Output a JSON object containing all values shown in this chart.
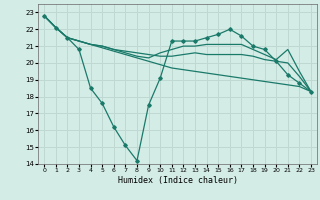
{
  "xlabel": "Humidex (Indice chaleur)",
  "background_color": "#d4ece6",
  "grid_color": "#c0d8d2",
  "line_color": "#1a7a6a",
  "xlim": [
    -0.5,
    23.5
  ],
  "ylim": [
    14,
    23.5
  ],
  "yticks": [
    14,
    15,
    16,
    17,
    18,
    19,
    20,
    21,
    22,
    23
  ],
  "xticks": [
    0,
    1,
    2,
    3,
    4,
    5,
    6,
    7,
    8,
    9,
    10,
    11,
    12,
    13,
    14,
    15,
    16,
    17,
    18,
    19,
    20,
    21,
    22,
    23
  ],
  "series": [
    {
      "x": [
        0,
        1,
        2,
        3,
        4,
        5,
        6,
        7,
        8,
        9,
        10,
        11,
        12,
        13,
        14,
        15,
        16,
        17,
        18,
        19,
        20,
        21,
        22,
        23
      ],
      "y": [
        22.8,
        22.1,
        21.5,
        21.3,
        21.1,
        21.0,
        20.8,
        20.7,
        20.6,
        20.5,
        20.4,
        20.4,
        20.5,
        20.6,
        20.5,
        20.5,
        20.5,
        20.5,
        20.4,
        20.2,
        20.1,
        20.0,
        19.2,
        18.3
      ],
      "marker": false,
      "lw": 0.9
    },
    {
      "x": [
        0,
        1,
        2,
        3,
        4,
        5,
        6,
        7,
        8,
        9,
        10,
        11,
        12,
        13,
        14,
        15,
        16,
        17,
        18,
        19,
        20,
        21,
        22,
        23
      ],
      "y": [
        22.8,
        22.1,
        21.5,
        21.3,
        21.1,
        21.0,
        20.8,
        20.6,
        20.4,
        20.3,
        20.6,
        20.8,
        21.0,
        21.0,
        21.1,
        21.1,
        21.1,
        21.1,
        20.8,
        20.5,
        20.2,
        20.8,
        19.5,
        18.3
      ],
      "marker": false,
      "lw": 0.9
    },
    {
      "x": [
        0,
        1,
        2,
        3,
        4,
        5,
        6,
        7,
        8,
        9,
        10,
        11,
        12,
        13,
        14,
        15,
        16,
        17,
        18,
        19,
        20,
        21,
        22,
        23
      ],
      "y": [
        22.8,
        22.1,
        21.5,
        21.3,
        21.1,
        20.9,
        20.7,
        20.5,
        20.3,
        20.1,
        19.9,
        19.7,
        19.6,
        19.5,
        19.4,
        19.3,
        19.2,
        19.1,
        19.0,
        18.9,
        18.8,
        18.7,
        18.6,
        18.3
      ],
      "marker": false,
      "lw": 0.9
    },
    {
      "x": [
        0,
        1,
        2,
        3,
        4,
        5,
        6,
        7,
        8,
        9,
        10,
        11,
        12,
        13,
        14,
        15,
        16,
        17,
        18,
        19,
        20,
        21,
        22,
        23
      ],
      "y": [
        22.8,
        22.1,
        21.5,
        20.8,
        18.5,
        17.6,
        16.2,
        15.1,
        14.2,
        17.5,
        19.1,
        21.3,
        21.3,
        21.3,
        21.5,
        21.7,
        22.0,
        21.6,
        21.0,
        20.8,
        20.1,
        19.3,
        18.8,
        18.3
      ],
      "marker": true,
      "lw": 0.9
    }
  ]
}
